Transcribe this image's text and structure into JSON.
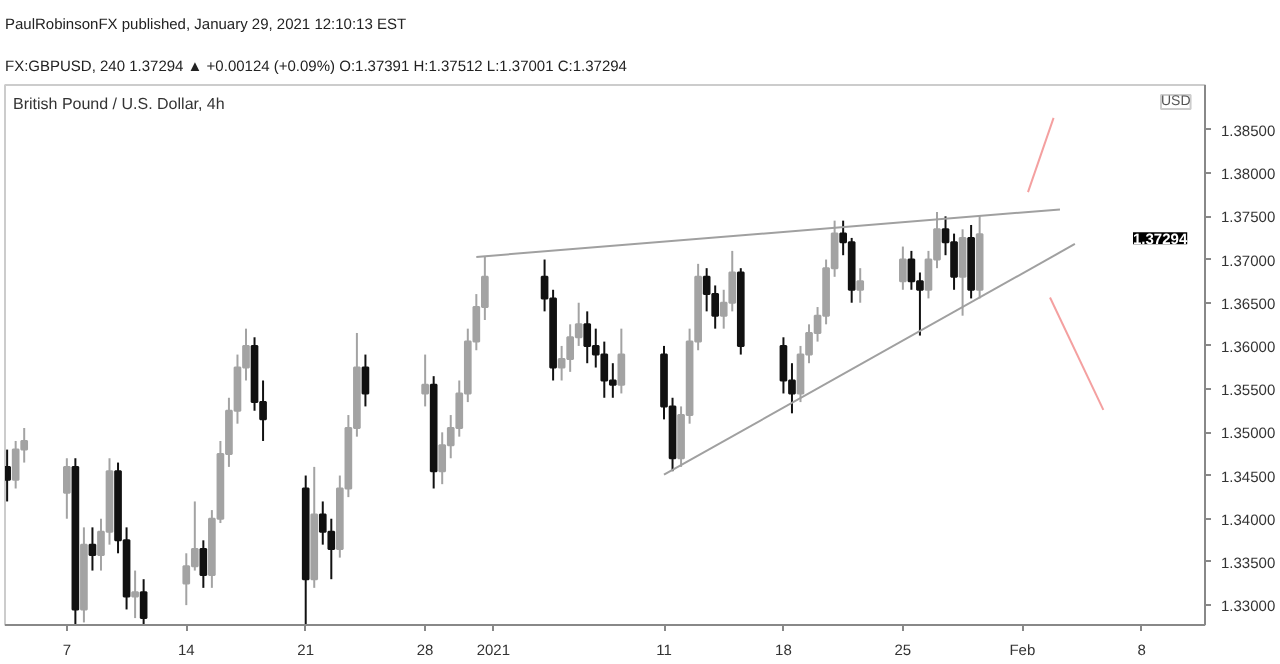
{
  "chart_data": {
    "type": "candlestick",
    "title": "British Pound / U.S. Dollar, 4h",
    "subtitle": "FX:GBPUSD, 240 1.37294 ▲ +0.00124 (+0.09%) O:1.37391 H:1.37512 L:1.37001 C:1.37294",
    "annotations": [
      "PaulRobinsonFX published, January 29, 2021 12:10:13 EST",
      "USD",
      "1.37294"
    ],
    "colors": [
      "#111111",
      "#a3a3a3",
      "#a3a3a3",
      "#a3a3a3",
      "#111111",
      "#a3a3a3",
      "#111111",
      "#a3a3a3",
      "#a3a3a3",
      "#111111",
      "#111111",
      "#a3a3a3",
      "#111111",
      "#a3a3a3",
      "#a3a3a3",
      "#111111",
      "#a3a3a3",
      "#a3a3a3",
      "#a3a3a3",
      "#a3a3a3",
      "#a3a3a3",
      "#111111",
      "#111111",
      "#111111",
      "#a3a3a3",
      "#111111",
      "#111111",
      "#a3a3a3",
      "#a3a3a3",
      "#a3a3a3",
      "#111111",
      "#a3a3a3",
      "#111111",
      "#a3a3a3",
      "#a3a3a3",
      "#a3a3a3",
      "#a3a3a3",
      "#a3a3a3",
      "#a3a3a3",
      "#111111",
      "#111111",
      "#a3a3a3",
      "#a3a3a3",
      "#a3a3a3",
      "#111111",
      "#111111",
      "#111111",
      "#111111",
      "#a3a3a3",
      "#111111",
      "#111111",
      "#a3a3a3",
      "#a3a3a3",
      "#a3a3a3",
      "#111111",
      "#111111",
      "#a3a3a3",
      "#a3a3a3",
      "#111111",
      "#111111",
      "#111111",
      "#a3a3a3",
      "#a3a3a3",
      "#a3a3a3",
      "#a3a3a3",
      "#a3a3a3",
      "#111111",
      "#111111",
      "#a3a3a3",
      "#a3a3a3",
      "#111111",
      "#111111",
      "#a3a3a3",
      "#a3a3a3",
      "#111111",
      "#111111",
      "#a3a3a3",
      "#111111",
      "#a3a3a3"
    ],
    "x": [
      "2020-12-03T12:00",
      "2020-12-04T00:00",
      "2020-12-04T12:00",
      "2020-12-07T00:00",
      "2020-12-07T12:00",
      "2020-12-08T00:00",
      "2020-12-08T12:00",
      "2020-12-09T00:00",
      "2020-12-09T12:00",
      "2020-12-10T00:00",
      "2020-12-10T12:00",
      "2020-12-11T00:00",
      "2020-12-11T12:00",
      "2020-12-14T00:00",
      "2020-12-14T12:00",
      "2020-12-15T00:00",
      "2020-12-15T12:00",
      "2020-12-16T00:00",
      "2020-12-16T12:00",
      "2020-12-17T00:00",
      "2020-12-17T12:00",
      "2020-12-18T00:00",
      "2020-12-18T12:00",
      "2020-12-21T00:00",
      "2020-12-21T12:00",
      "2020-12-22T00:00",
      "2020-12-22T12:00",
      "2020-12-23T00:00",
      "2020-12-23T12:00",
      "2020-12-24T00:00",
      "2020-12-24T12:00",
      "2020-12-28T00:00",
      "2020-12-28T12:00",
      "2020-12-29T00:00",
      "2020-12-29T12:00",
      "2020-12-30T00:00",
      "2020-12-30T12:00",
      "2020-12-31T00:00",
      "2020-12-31T12:00",
      "2021-01-04T00:00",
      "2021-01-04T12:00",
      "2021-01-05T00:00",
      "2021-01-05T12:00",
      "2021-01-06T00:00",
      "2021-01-06T12:00",
      "2021-01-07T00:00",
      "2021-01-07T12:00",
      "2021-01-08T00:00",
      "2021-01-08T12:00",
      "2021-01-11T00:00",
      "2021-01-11T12:00",
      "2021-01-12T00:00",
      "2021-01-12T12:00",
      "2021-01-13T00:00",
      "2021-01-13T12:00",
      "2021-01-14T00:00",
      "2021-01-14T12:00",
      "2021-01-15T00:00",
      "2021-01-15T12:00",
      "2021-01-18T00:00",
      "2021-01-18T12:00",
      "2021-01-19T00:00",
      "2021-01-19T12:00",
      "2021-01-20T00:00",
      "2021-01-20T12:00",
      "2021-01-21T00:00",
      "2021-01-21T12:00",
      "2021-01-22T00:00",
      "2021-01-22T12:00",
      "2021-01-25T00:00",
      "2021-01-25T12:00",
      "2021-01-26T00:00",
      "2021-01-26T12:00",
      "2021-01-27T00:00",
      "2021-01-27T12:00",
      "2021-01-28T00:00",
      "2021-01-28T12:00",
      "2021-01-29T00:00",
      "2021-01-29T12:00"
    ],
    "ohlc": [
      [
        1.346,
        1.348,
        1.342,
        1.3445
      ],
      [
        1.3445,
        1.349,
        1.3435,
        1.348
      ],
      [
        1.348,
        1.3505,
        1.3465,
        1.349
      ],
      [
        1.343,
        1.347,
        1.34,
        1.346
      ],
      [
        1.346,
        1.347,
        1.3278,
        1.3295
      ],
      [
        1.3295,
        1.339,
        1.328,
        1.337
      ],
      [
        1.337,
        1.339,
        1.334,
        1.3358
      ],
      [
        1.3358,
        1.34,
        1.334,
        1.3385
      ],
      [
        1.3385,
        1.347,
        1.337,
        1.3455
      ],
      [
        1.3455,
        1.3465,
        1.336,
        1.3375
      ],
      [
        1.3375,
        1.339,
        1.3295,
        1.331
      ],
      [
        1.331,
        1.334,
        1.3285,
        1.3315
      ],
      [
        1.3315,
        1.333,
        1.3278,
        1.3285
      ],
      [
        1.3325,
        1.336,
        1.33,
        1.3345
      ],
      [
        1.3345,
        1.342,
        1.334,
        1.3365
      ],
      [
        1.3365,
        1.3375,
        1.332,
        1.3335
      ],
      [
        1.3335,
        1.341,
        1.332,
        1.34
      ],
      [
        1.34,
        1.349,
        1.3395,
        1.3475
      ],
      [
        1.3475,
        1.354,
        1.346,
        1.3525
      ],
      [
        1.3525,
        1.359,
        1.351,
        1.3575
      ],
      [
        1.3575,
        1.362,
        1.356,
        1.36
      ],
      [
        1.36,
        1.361,
        1.3525,
        1.3535
      ],
      [
        1.3535,
        1.356,
        1.349,
        1.3515
      ],
      [
        1.3435,
        1.345,
        1.3278,
        1.333
      ],
      [
        1.333,
        1.346,
        1.332,
        1.3405
      ],
      [
        1.3405,
        1.342,
        1.337,
        1.3385
      ],
      [
        1.3385,
        1.34,
        1.333,
        1.3365
      ],
      [
        1.3365,
        1.345,
        1.3355,
        1.3435
      ],
      [
        1.3435,
        1.352,
        1.3425,
        1.3505
      ],
      [
        1.3505,
        1.3615,
        1.3495,
        1.3575
      ],
      [
        1.3575,
        1.359,
        1.353,
        1.3545
      ],
      [
        1.3545,
        1.359,
        1.353,
        1.3555
      ],
      [
        1.3555,
        1.3565,
        1.3435,
        1.3455
      ],
      [
        1.3455,
        1.35,
        1.344,
        1.3485
      ],
      [
        1.3485,
        1.352,
        1.347,
        1.3505
      ],
      [
        1.3505,
        1.356,
        1.3495,
        1.3545
      ],
      [
        1.3545,
        1.362,
        1.3535,
        1.3605
      ],
      [
        1.3605,
        1.366,
        1.3595,
        1.3645
      ],
      [
        1.3645,
        1.3703,
        1.363,
        1.368
      ],
      [
        1.368,
        1.37,
        1.364,
        1.3655
      ],
      [
        1.3655,
        1.3665,
        1.356,
        1.3575
      ],
      [
        1.3575,
        1.36,
        1.356,
        1.3585
      ],
      [
        1.3585,
        1.3625,
        1.357,
        1.361
      ],
      [
        1.361,
        1.365,
        1.36,
        1.3625
      ],
      [
        1.3625,
        1.364,
        1.358,
        1.36
      ],
      [
        1.36,
        1.362,
        1.3575,
        1.359
      ],
      [
        1.359,
        1.3605,
        1.354,
        1.356
      ],
      [
        1.356,
        1.358,
        1.354,
        1.3555
      ],
      [
        1.3555,
        1.362,
        1.3545,
        1.359
      ],
      [
        1.359,
        1.36,
        1.3515,
        1.353
      ],
      [
        1.353,
        1.354,
        1.3455,
        1.347
      ],
      [
        1.347,
        1.353,
        1.346,
        1.352
      ],
      [
        1.352,
        1.362,
        1.351,
        1.3605
      ],
      [
        1.3605,
        1.3695,
        1.3595,
        1.368
      ],
      [
        1.368,
        1.369,
        1.364,
        1.366
      ],
      [
        1.366,
        1.367,
        1.362,
        1.3635
      ],
      [
        1.3635,
        1.3665,
        1.362,
        1.365
      ],
      [
        1.365,
        1.371,
        1.364,
        1.3685
      ],
      [
        1.3685,
        1.369,
        1.359,
        1.36
      ],
      [
        1.36,
        1.361,
        1.3545,
        1.356
      ],
      [
        1.356,
        1.358,
        1.3522,
        1.3545
      ],
      [
        1.3545,
        1.36,
        1.3535,
        1.359
      ],
      [
        1.359,
        1.3625,
        1.358,
        1.3615
      ],
      [
        1.3615,
        1.3645,
        1.3605,
        1.3635
      ],
      [
        1.3635,
        1.37,
        1.3625,
        1.369
      ],
      [
        1.369,
        1.3745,
        1.368,
        1.373
      ],
      [
        1.373,
        1.3745,
        1.3705,
        1.372
      ],
      [
        1.372,
        1.3725,
        1.365,
        1.3665
      ],
      [
        1.3665,
        1.369,
        1.365,
        1.3675
      ],
      [
        1.3675,
        1.3715,
        1.3665,
        1.37
      ],
      [
        1.37,
        1.371,
        1.3665,
        1.3675
      ],
      [
        1.3675,
        1.3685,
        1.3612,
        1.3665
      ],
      [
        1.3665,
        1.371,
        1.3655,
        1.37
      ],
      [
        1.37,
        1.3755,
        1.369,
        1.3735
      ],
      [
        1.3735,
        1.375,
        1.3705,
        1.372
      ],
      [
        1.372,
        1.373,
        1.3665,
        1.368
      ],
      [
        1.368,
        1.3735,
        1.3635,
        1.3725
      ],
      [
        1.3725,
        1.374,
        1.3655,
        1.3665
      ],
      [
        1.3665,
        1.37512,
        1.3655,
        1.37294
      ]
    ],
    "series": [
      {
        "type": "line",
        "color": "#a0a0a0",
        "x": [
          "2020-12-31T00:00",
          "2021-02-03T05:00"
        ],
        "values": [
          1.3703,
          1.3758
        ]
      },
      {
        "type": "line",
        "color": "#a0a0a0",
        "x": [
          "2021-01-11T00:00",
          "2021-02-04T02:00"
        ],
        "values": [
          1.3451,
          1.3718
        ]
      },
      {
        "type": "line",
        "color": "#f4a0a0",
        "x": [
          "2021-02-01T08:00",
          "2021-02-02T20:00"
        ],
        "values": [
          1.3778,
          1.3864
        ]
      },
      {
        "type": "line",
        "color": "#f4a0a0",
        "x": [
          "2021-02-02T15:00",
          "2021-02-05T18:00"
        ],
        "values": [
          1.3656,
          1.3526
        ]
      }
    ],
    "xlim": [
      "2020-12-03T09:00",
      "2021-02-11T17:00"
    ],
    "xticks": [
      {
        "value": "2020-12-07",
        "label": "7"
      },
      {
        "value": "2020-12-14",
        "label": "14"
      },
      {
        "value": "2020-12-21",
        "label": "21"
      },
      {
        "value": "2020-12-28",
        "label": "28"
      },
      {
        "value": "2021-01-01",
        "label": "2021"
      },
      {
        "value": "2021-01-11",
        "label": "11"
      },
      {
        "value": "2021-01-18",
        "label": "18"
      },
      {
        "value": "2021-01-25",
        "label": "25"
      },
      {
        "value": "2021-02-01",
        "label": "Feb"
      },
      {
        "value": "2021-02-08",
        "label": "8"
      }
    ],
    "ylim": [
      1.3277,
      1.3902
    ],
    "yticks": [
      {
        "value": 1.33,
        "label": "1.33000"
      },
      {
        "value": 1.335,
        "label": "1.33500"
      },
      {
        "value": 1.34,
        "label": "1.34000"
      },
      {
        "value": 1.345,
        "label": "1.34500"
      },
      {
        "value": 1.35,
        "label": "1.35000"
      },
      {
        "value": 1.355,
        "label": "1.35500"
      },
      {
        "value": 1.36,
        "label": "1.36000"
      },
      {
        "value": 1.365,
        "label": "1.36500"
      },
      {
        "value": 1.37,
        "label": "1.37000"
      },
      {
        "value": 1.375,
        "label": "1.37500"
      },
      {
        "value": 1.38,
        "label": "1.38000"
      },
      {
        "value": 1.385,
        "label": "1.38500"
      }
    ],
    "grid": false
  }
}
